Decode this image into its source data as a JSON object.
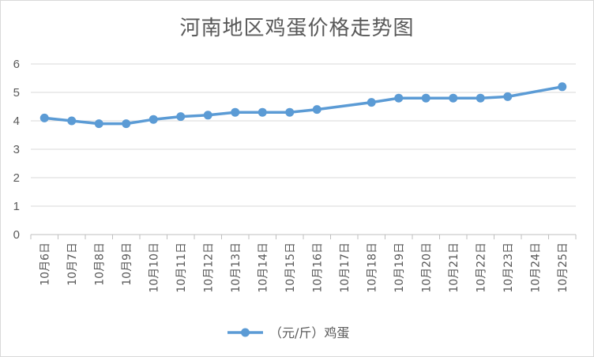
{
  "chart_data": {
    "type": "line",
    "title": "河南地区鸡蛋价格走势图",
    "categories": [
      "10月6日",
      "10月7日",
      "10月8日",
      "10月9日",
      "10月10日",
      "10月11日",
      "10月12日",
      "10月13日",
      "10月14日",
      "10月15日",
      "10月16日",
      "10月17日",
      "10月18日",
      "10月19日",
      "10月20日",
      "10月21日",
      "10月22日",
      "10月23日",
      "10月24日",
      "10月25日"
    ],
    "y_ticks": [
      "0",
      "1",
      "2",
      "3",
      "4",
      "5",
      "6"
    ],
    "ylim": [
      0,
      6
    ],
    "grid": true,
    "legend_position": "bottom",
    "series": [
      {
        "name": "（元/斤）鸡蛋",
        "color": "#5B9BD5",
        "values": [
          4.1,
          4.0,
          3.9,
          3.9,
          4.05,
          4.15,
          4.2,
          4.3,
          4.3,
          4.3,
          4.4,
          null,
          4.65,
          4.8,
          4.8,
          4.8,
          4.8,
          4.85,
          null,
          5.2
        ]
      }
    ]
  }
}
